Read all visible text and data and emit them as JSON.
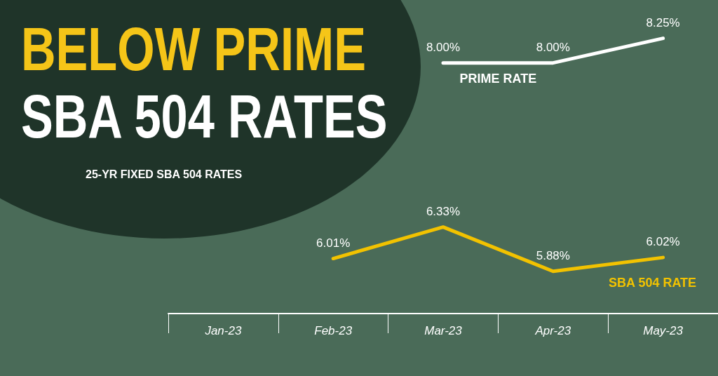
{
  "chart_data": {
    "type": "line",
    "title": "BELOW PRIME",
    "subtitle": "SBA 504 RATES",
    "annotations": [
      "25-YR FIXED SBA 504 RATES"
    ],
    "categories": [
      "Jan-23",
      "Feb-23",
      "Mar-23",
      "Apr-23",
      "May-23"
    ],
    "series": [
      {
        "name": "PRIME RATE",
        "color": "#ffffff",
        "values": [
          null,
          null,
          8.0,
          8.0,
          8.25
        ],
        "value_labels": [
          null,
          null,
          "8.00%",
          "8.00%",
          "8.25%"
        ]
      },
      {
        "name": "SBA 504 RATE",
        "color": "#f2c200",
        "values": [
          null,
          6.01,
          6.33,
          5.88,
          6.02
        ],
        "value_labels": [
          null,
          "6.01%",
          "6.33%",
          "5.88%",
          "6.02%"
        ]
      }
    ],
    "ylim": [
      5.45,
      8.64
    ],
    "tick_labels": "x",
    "grid": false,
    "legend": false,
    "marker": "none",
    "line_style": "solid"
  }
}
